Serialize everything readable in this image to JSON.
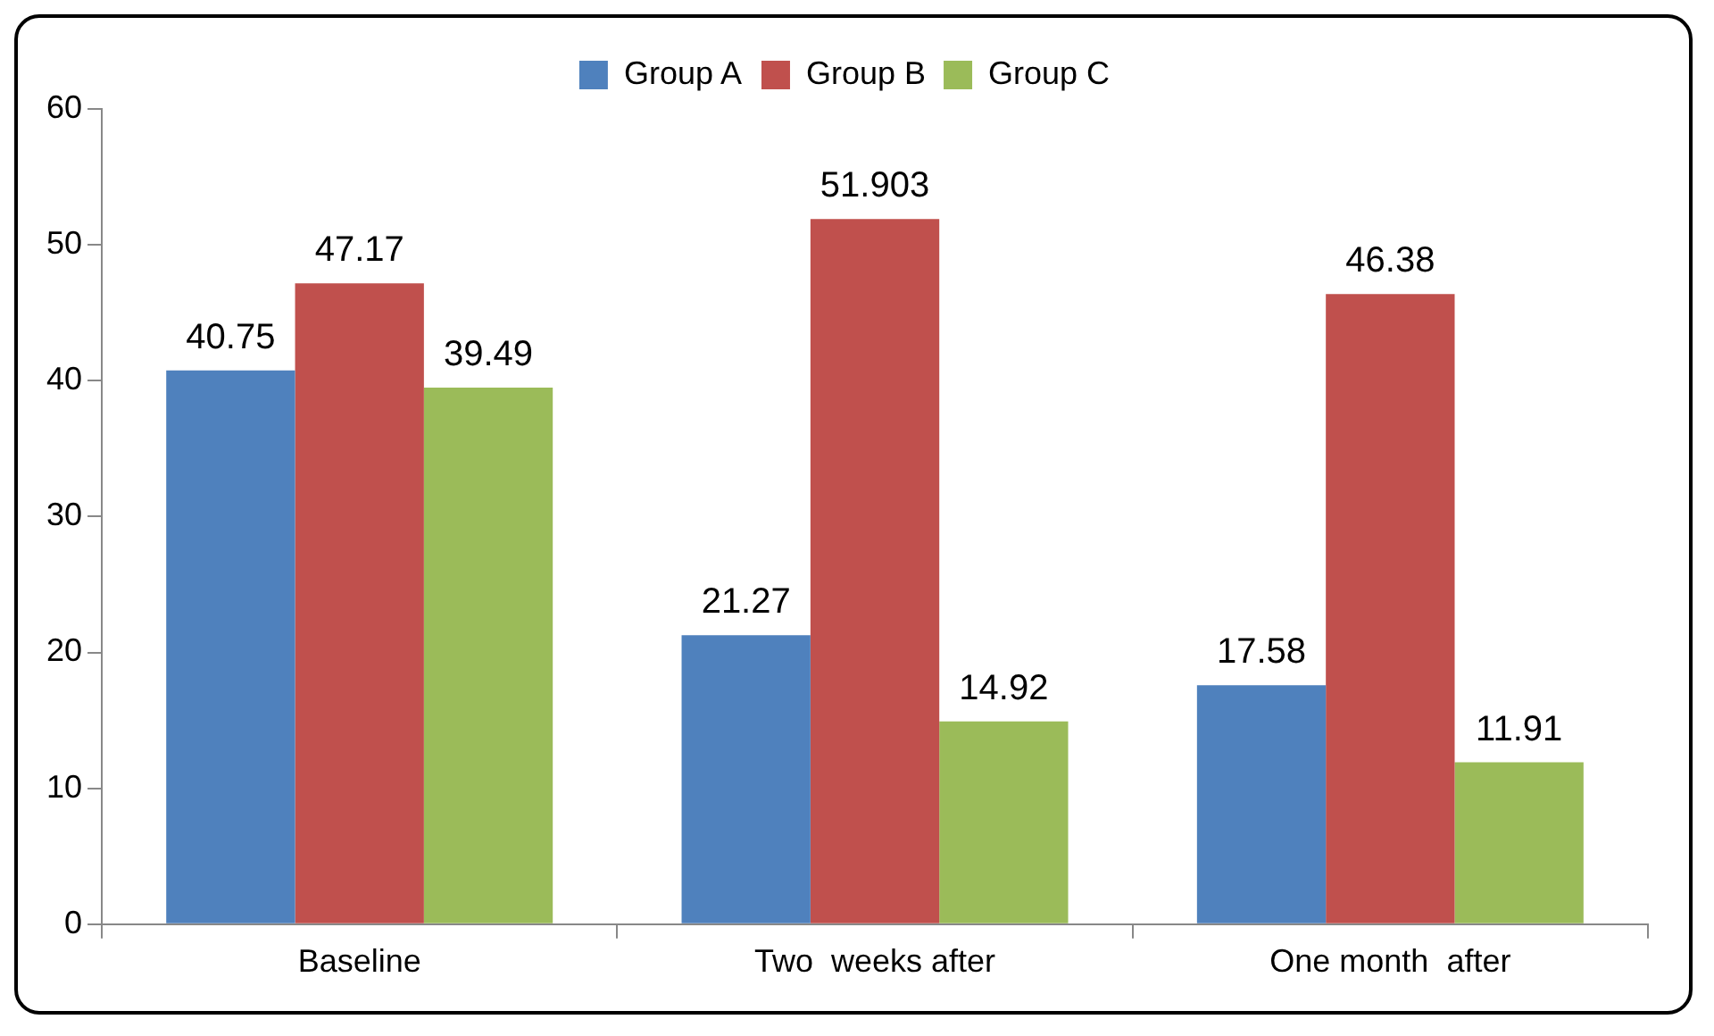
{
  "chart_data": {
    "type": "bar",
    "categories": [
      "Baseline",
      "Two  weeks after",
      "One month  after"
    ],
    "series": [
      {
        "name": "Group A",
        "color": "#4f81bd",
        "values": [
          40.75,
          21.27,
          17.58
        ]
      },
      {
        "name": "Group B",
        "color": "#c0504d",
        "values": [
          47.17,
          51.903,
          46.38
        ]
      },
      {
        "name": "Group C",
        "color": "#9bbb59",
        "values": [
          39.49,
          14.92,
          11.91
        ]
      }
    ],
    "ylim": [
      0,
      60
    ],
    "yticks": [
      0,
      10,
      20,
      30,
      40,
      50,
      60
    ],
    "grid": false,
    "legend": "top",
    "data_labels": true
  }
}
